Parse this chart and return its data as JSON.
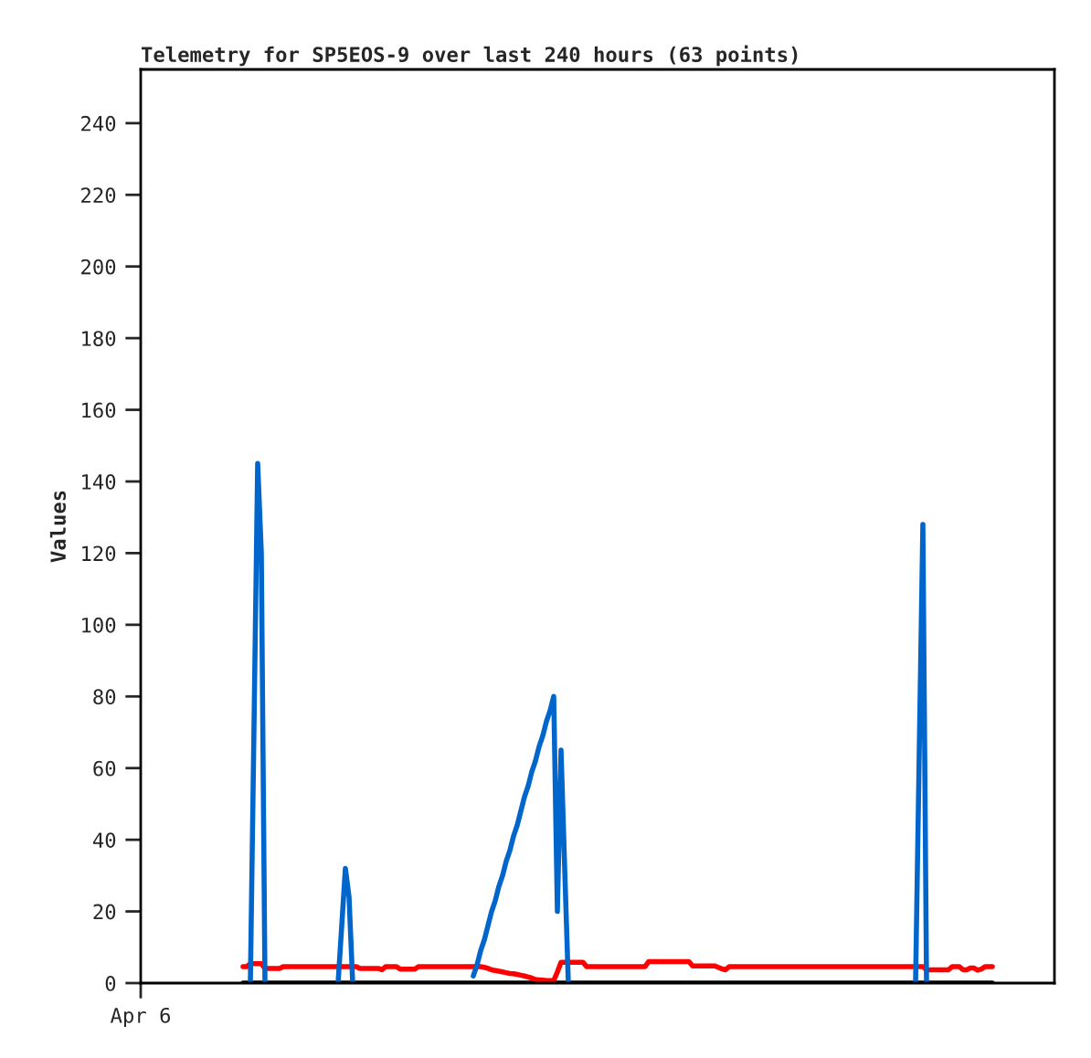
{
  "chart_data": {
    "type": "line",
    "title": "Telemetry for SP5EOS-9 over last 240 hours (63 points)",
    "ylabel": "Values",
    "categories": [
      "Apr 6",
      null,
      null,
      null,
      null,
      null,
      null,
      null,
      null,
      null,
      null,
      null,
      null,
      null,
      null,
      null,
      null,
      null,
      null,
      null,
      null,
      null,
      null,
      null,
      null,
      null,
      null,
      null,
      null,
      null,
      null,
      null,
      null,
      null,
      null,
      null,
      null,
      null,
      null,
      null,
      null,
      null,
      null,
      null,
      null,
      null,
      null,
      null,
      null,
      null,
      null,
      null,
      null,
      null,
      null,
      null,
      null,
      null,
      null,
      null,
      null,
      null,
      null,
      null,
      null,
      null,
      null,
      null,
      null,
      null,
      null,
      null,
      null,
      null,
      null,
      null,
      null,
      null,
      null,
      null,
      null,
      null,
      null,
      null,
      null,
      null,
      null,
      null,
      null,
      null,
      null,
      null,
      null,
      null,
      null,
      null,
      null,
      null,
      null,
      null,
      null,
      null,
      null,
      null,
      null,
      null,
      null,
      null,
      null,
      null,
      null,
      null,
      null,
      null,
      null,
      null,
      null,
      null,
      null,
      null,
      null,
      null,
      null,
      null,
      null,
      null,
      null,
      null,
      null,
      null,
      null,
      null,
      null,
      null,
      null,
      null,
      null,
      null,
      null,
      null,
      null,
      null,
      null,
      null,
      null,
      null,
      null,
      null,
      null,
      null,
      null,
      null,
      null,
      null,
      null,
      null,
      null,
      null,
      null,
      null,
      null,
      null,
      null,
      null,
      null,
      null,
      null,
      null,
      null,
      null,
      null,
      null,
      null,
      null,
      null,
      null,
      null,
      null,
      null,
      null,
      null,
      null,
      null,
      null,
      null,
      null,
      null,
      null,
      null,
      null,
      null,
      null,
      null,
      null,
      null,
      null,
      null,
      null,
      null,
      null,
      null,
      null,
      null,
      null,
      null,
      null,
      null,
      null,
      null,
      null,
      null,
      null,
      null,
      null,
      null,
      null,
      null,
      null,
      null,
      null,
      null,
      null,
      null,
      null,
      null,
      null,
      null,
      null,
      null,
      null,
      null,
      null,
      null,
      null,
      null,
      null,
      null,
      null,
      null,
      null,
      null,
      null,
      null,
      null,
      null,
      null,
      null,
      null,
      null,
      null,
      null
    ],
    "ylim": [
      0,
      255
    ],
    "yticks": [
      0,
      20,
      40,
      60,
      80,
      100,
      120,
      140,
      160,
      180,
      200,
      220,
      240
    ],
    "line_style": "solid",
    "series": [
      {
        "color": "#000000",
        "values": [
          null,
          null,
          null,
          null,
          null,
          null,
          null,
          null,
          null,
          null,
          null,
          null,
          null,
          null,
          null,
          null,
          null,
          null,
          null,
          null,
          null,
          null,
          null,
          null,
          null,
          null,
          null,
          null,
          0,
          0,
          0,
          0,
          0,
          0,
          0,
          0,
          0,
          0,
          0,
          0,
          0,
          0,
          0,
          0,
          0,
          0,
          0,
          0,
          0,
          0,
          0,
          0,
          0,
          0,
          0,
          0,
          0,
          0,
          0,
          0,
          0,
          0,
          0,
          0,
          0,
          0,
          0,
          0,
          0,
          0,
          0,
          0,
          0,
          0,
          0,
          0,
          0,
          0,
          0,
          0,
          0,
          0,
          0,
          0,
          0,
          0,
          0,
          0,
          0,
          0,
          0,
          0,
          0,
          0,
          0,
          0,
          0,
          0,
          0,
          0,
          0,
          0,
          0,
          0,
          0,
          0,
          0,
          0,
          0,
          0,
          0,
          0,
          0,
          0,
          0,
          0,
          0,
          0,
          0,
          0,
          0,
          0,
          0,
          0,
          0,
          0,
          0,
          0,
          0,
          0,
          0,
          0,
          0,
          0,
          0,
          0,
          0,
          0,
          0,
          0,
          0,
          0,
          0,
          0,
          0,
          0,
          0,
          0,
          0,
          0,
          0,
          0,
          0,
          0,
          0,
          0,
          0,
          0,
          0,
          0,
          0,
          0,
          0,
          0,
          0,
          0,
          0,
          0,
          0,
          0,
          0,
          0,
          0,
          0,
          0,
          0,
          0,
          0,
          0,
          0,
          0,
          0,
          0,
          0,
          0,
          0,
          0,
          0,
          0,
          0,
          0,
          0,
          0,
          0,
          0,
          0,
          0,
          0,
          0,
          0,
          0,
          0,
          0,
          0,
          0,
          0,
          0,
          0,
          0,
          0,
          0,
          0,
          0,
          0,
          0,
          0,
          0,
          0,
          0,
          0,
          0,
          0,
          0,
          0,
          0,
          0,
          0,
          0,
          0,
          0,
          0,
          0,
          0,
          0,
          null,
          null,
          null,
          null,
          null,
          null,
          null,
          null,
          null,
          null,
          null,
          null,
          null,
          null,
          null,
          null,
          null
        ]
      },
      {
        "color": "#ff0000",
        "values": [
          null,
          null,
          null,
          null,
          null,
          null,
          null,
          null,
          null,
          null,
          null,
          null,
          null,
          null,
          null,
          null,
          null,
          null,
          null,
          null,
          null,
          null,
          null,
          null,
          null,
          null,
          null,
          null,
          4.6,
          4.6,
          5.4,
          5.4,
          5.4,
          5.4,
          4.1,
          4.1,
          4.1,
          4.1,
          4.1,
          4.6,
          4.6,
          4.6,
          4.6,
          4.6,
          4.6,
          4.6,
          4.6,
          4.6,
          4.6,
          4.6,
          4.6,
          4.6,
          4.6,
          4.6,
          4.6,
          4.6,
          4.6,
          4.6,
          4.6,
          4.6,
          4.1,
          4.1,
          4.1,
          4.1,
          4.1,
          4.1,
          3.7,
          4.6,
          4.6,
          4.6,
          4.6,
          3.9,
          3.9,
          3.9,
          3.9,
          3.9,
          4.6,
          4.6,
          4.6,
          4.6,
          4.6,
          4.6,
          4.6,
          4.6,
          4.6,
          4.6,
          4.6,
          4.6,
          4.6,
          4.6,
          4.6,
          4.6,
          4.6,
          4.6,
          4.4,
          4.1,
          3.7,
          3.5,
          3.3,
          3.1,
          2.9,
          2.7,
          2.6,
          2.4,
          2.2,
          2.0,
          1.7,
          1.4,
          1.0,
          0.9,
          0.8,
          0.7,
          0.7,
          0.7,
          3.1,
          5.8,
          5.8,
          5.8,
          5.8,
          5.8,
          5.8,
          5.8,
          4.6,
          4.6,
          4.6,
          4.6,
          4.6,
          4.6,
          4.6,
          4.6,
          4.6,
          4.6,
          4.6,
          4.6,
          4.6,
          4.6,
          4.6,
          4.6,
          4.6,
          6.0,
          6.0,
          6.0,
          6.0,
          6.0,
          6.0,
          6.0,
          6.0,
          6.0,
          6.0,
          6.0,
          6.0,
          4.8,
          4.8,
          4.8,
          4.8,
          4.8,
          4.8,
          4.8,
          4.4,
          4.0,
          3.7,
          4.6,
          4.6,
          4.6,
          4.6,
          4.6,
          4.6,
          4.6,
          4.6,
          4.6,
          4.6,
          4.6,
          4.6,
          4.6,
          4.6,
          4.6,
          4.6,
          4.6,
          4.6,
          4.6,
          4.6,
          4.6,
          4.6,
          4.6,
          4.6,
          4.6,
          4.6,
          4.6,
          4.6,
          4.6,
          4.6,
          4.6,
          4.6,
          4.6,
          4.6,
          4.6,
          4.6,
          4.6,
          4.6,
          4.6,
          4.6,
          4.6,
          4.6,
          4.6,
          4.6,
          4.6,
          4.6,
          4.6,
          4.6,
          4.6,
          4.6,
          4.6,
          4.6,
          4.6,
          4.6,
          3.7,
          3.7,
          3.7,
          3.7,
          3.7,
          3.7,
          3.7,
          4.6,
          4.6,
          4.6,
          3.7,
          3.7,
          4.2,
          4.2,
          3.6,
          3.9,
          4.6,
          4.6,
          4.6,
          null,
          null,
          null,
          null,
          null,
          null,
          null,
          null,
          null,
          null,
          null,
          null,
          null,
          null,
          null,
          null,
          null
        ]
      },
      {
        "color": "#0066cc",
        "values": [
          null,
          null,
          null,
          null,
          null,
          null,
          null,
          null,
          null,
          null,
          null,
          null,
          null,
          null,
          null,
          null,
          null,
          null,
          null,
          null,
          null,
          null,
          null,
          null,
          null,
          null,
          null,
          null,
          null,
          null,
          0,
          72,
          145,
          120,
          0,
          null,
          null,
          null,
          null,
          null,
          null,
          null,
          null,
          null,
          null,
          null,
          null,
          null,
          null,
          null,
          null,
          null,
          null,
          null,
          0,
          16,
          32,
          24,
          0,
          null,
          null,
          null,
          null,
          null,
          null,
          null,
          null,
          null,
          null,
          null,
          null,
          null,
          null,
          null,
          null,
          null,
          null,
          null,
          null,
          null,
          null,
          null,
          null,
          null,
          null,
          null,
          null,
          null,
          null,
          null,
          null,
          2,
          5,
          9,
          12,
          16,
          20,
          23,
          27,
          30,
          34,
          37,
          41,
          44,
          48,
          52,
          55,
          59,
          62,
          66,
          69,
          73,
          76,
          80,
          20,
          65,
          32,
          0,
          null,
          null,
          null,
          null,
          null,
          null,
          null,
          null,
          null,
          null,
          null,
          null,
          null,
          null,
          null,
          null,
          null,
          null,
          null,
          null,
          null,
          null,
          null,
          null,
          null,
          null,
          null,
          null,
          null,
          null,
          null,
          null,
          null,
          null,
          null,
          null,
          null,
          null,
          null,
          null,
          null,
          null,
          null,
          null,
          null,
          null,
          null,
          null,
          null,
          null,
          null,
          null,
          null,
          null,
          null,
          null,
          null,
          null,
          null,
          null,
          null,
          null,
          null,
          null,
          null,
          null,
          null,
          null,
          null,
          null,
          null,
          null,
          null,
          null,
          null,
          null,
          null,
          null,
          null,
          null,
          null,
          null,
          null,
          null,
          null,
          null,
          null,
          null,
          null,
          null,
          null,
          null,
          null,
          null,
          0,
          64,
          128,
          0,
          null,
          null,
          null,
          null,
          null,
          null,
          null,
          null,
          null,
          null,
          null,
          null,
          null,
          null,
          null,
          null,
          null,
          null,
          null,
          null,
          null,
          null,
          null,
          null,
          null,
          null,
          null,
          null,
          null,
          null,
          null,
          null,
          null,
          null,
          null
        ]
      }
    ]
  }
}
